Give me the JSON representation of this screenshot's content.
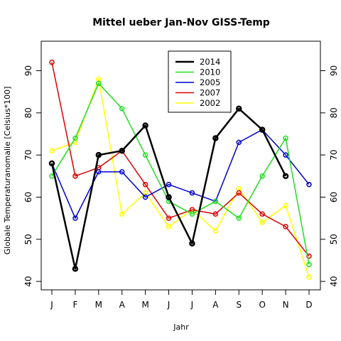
{
  "chart_data": {
    "type": "line",
    "title": "Mittel ueber Jan-Nov GISS-Temp",
    "xlabel": "Jahr",
    "ylabel": "Globale Temperaturanomalie [Celsius*100]",
    "categories": [
      "J",
      "F",
      "M",
      "A",
      "M",
      "J",
      "J",
      "A",
      "S",
      "O",
      "N",
      "D"
    ],
    "ylim": [
      38,
      97
    ],
    "yticks": [
      40,
      50,
      60,
      70,
      80,
      90
    ],
    "grid": false,
    "legend_position": "top-center",
    "series": [
      {
        "name": "2014",
        "color": "#000000",
        "values": [
          68,
          43,
          70,
          71,
          77,
          60,
          49,
          74,
          81,
          76,
          65,
          null
        ]
      },
      {
        "name": "2010",
        "color": "#22dd22",
        "values": [
          65,
          74,
          87,
          81,
          70,
          59,
          56,
          59,
          55,
          65,
          74,
          44
        ]
      },
      {
        "name": "2005",
        "color": "#0000cc",
        "values": [
          68,
          55,
          66,
          66,
          60,
          63,
          61,
          59,
          73,
          76,
          70,
          63
        ]
      },
      {
        "name": "2007",
        "color": "#dd0000",
        "values": [
          92,
          65,
          67,
          71,
          63,
          55,
          57,
          56,
          61,
          56,
          53,
          46
        ]
      },
      {
        "name": "2002",
        "color": "#ffff00",
        "values": [
          71,
          73,
          88,
          56,
          61,
          53,
          57,
          52,
          62,
          54,
          58,
          41
        ]
      }
    ]
  }
}
